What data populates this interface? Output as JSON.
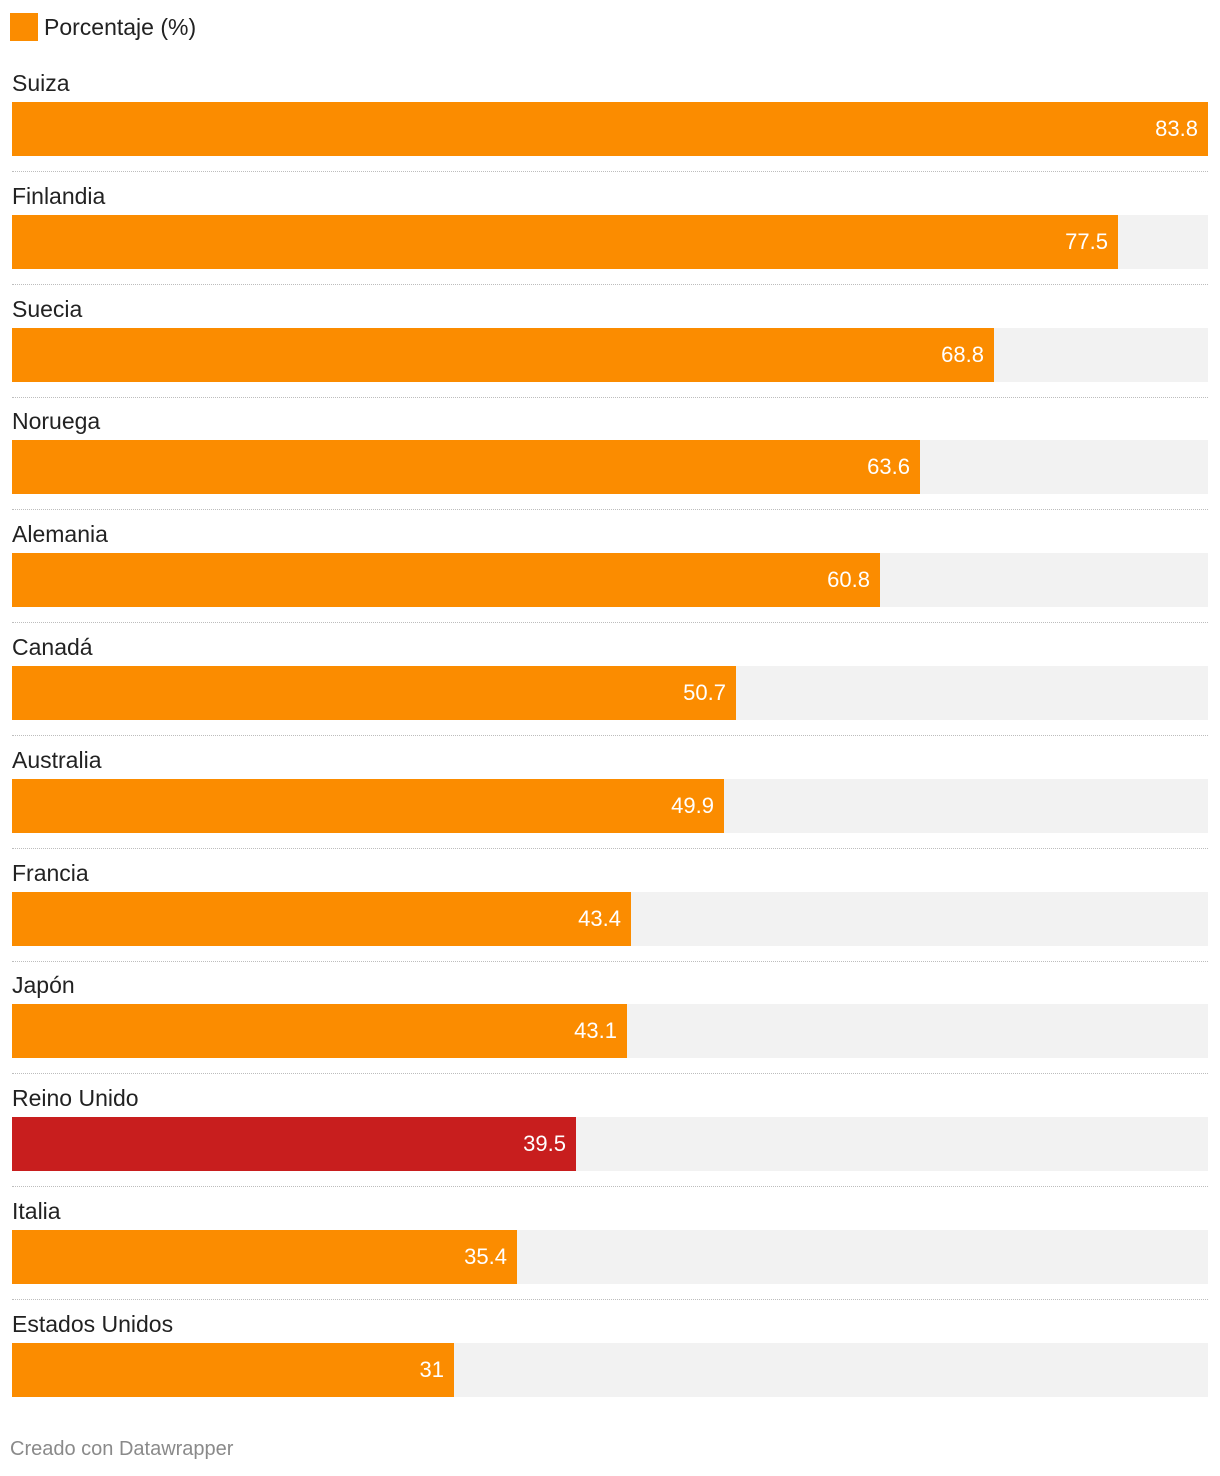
{
  "legend": {
    "label": "Porcentaje (%)",
    "color": "#fb8c00"
  },
  "credit": "Creado con Datawrapper",
  "colors": {
    "default_bar": "#fb8c00",
    "highlight_bar": "#c81e1e",
    "track": "#f2f2f2",
    "value_text": "#ffffff"
  },
  "chart_data": {
    "type": "bar",
    "orientation": "horizontal",
    "xlim": [
      0,
      83.8
    ],
    "grid": false,
    "legend_position": "top-left",
    "series": [
      {
        "name": "Porcentaje (%)",
        "values": [
          83.8,
          77.5,
          68.8,
          63.6,
          60.8,
          50.7,
          49.9,
          43.4,
          43.1,
          39.5,
          35.4,
          31
        ]
      }
    ],
    "categories": [
      "Suiza",
      "Finlandia",
      "Suecia",
      "Noruega",
      "Alemania",
      "Canadá",
      "Australia",
      "Francia",
      "Japón",
      "Reino Unido",
      "Italia",
      "Estados Unidos"
    ],
    "value_labels": [
      "83.8",
      "77.5",
      "68.8",
      "63.6",
      "60.8",
      "50.7",
      "49.9",
      "43.4",
      "43.1",
      "39.5",
      "35.4",
      "31"
    ],
    "highlight": "Reino Unido"
  }
}
